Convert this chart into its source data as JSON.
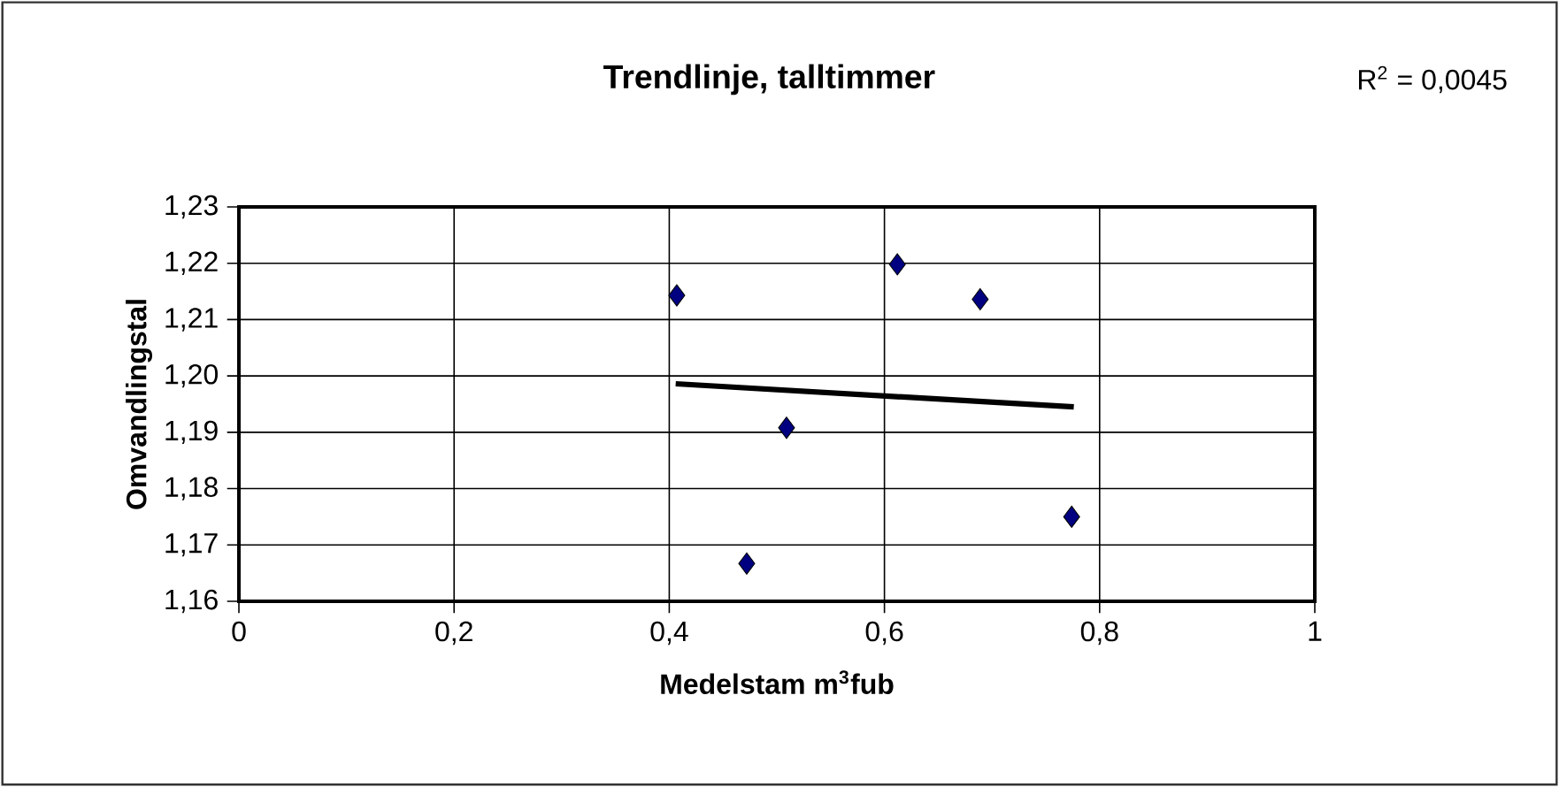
{
  "chart_data": {
    "type": "scatter",
    "title": "Trendlinje, talltimmer",
    "xlabel": "Medelstam m$^{3}$fub",
    "ylabel": "Omvandlingstal",
    "annotations": [
      "R$^{2}$ = 0,0045"
    ],
    "series": [
      {
        "color": "#000080",
        "marker": "diamond",
        "x": [
          0.407,
          0.472,
          0.509,
          0.612,
          0.689,
          0.774
        ],
        "values": [
          1.2143,
          1.1667,
          1.1908,
          1.2198,
          1.2136,
          1.175
        ]
      },
      {
        "type": "line",
        "color": "#000000",
        "marker": "none",
        "line_style": "solid",
        "x": [
          0.406,
          0.776
        ],
        "values": [
          1.1986,
          1.1945
        ]
      }
    ],
    "xlim": [
      0,
      1
    ],
    "ylim": [
      1.16,
      1.23
    ],
    "xticks": [
      0,
      {
        "value": 0.2,
        "label": "0,2"
      },
      {
        "value": 0.4,
        "label": "0,4"
      },
      {
        "value": 0.6,
        "label": "0,6"
      },
      {
        "value": 0.8,
        "label": "0,8"
      },
      1
    ],
    "yticks": [
      {
        "value": 1.16,
        "label": "1,16"
      },
      {
        "value": 1.17,
        "label": "1,17"
      },
      {
        "value": 1.18,
        "label": "1,18"
      },
      {
        "value": 1.19,
        "label": "1,19"
      },
      {
        "value": 1.2,
        "label": "1,20"
      },
      {
        "value": 1.21,
        "label": "1,21"
      },
      {
        "value": 1.22,
        "label": "1,22"
      },
      {
        "value": 1.23,
        "label": "1,23"
      }
    ],
    "grid": true
  }
}
